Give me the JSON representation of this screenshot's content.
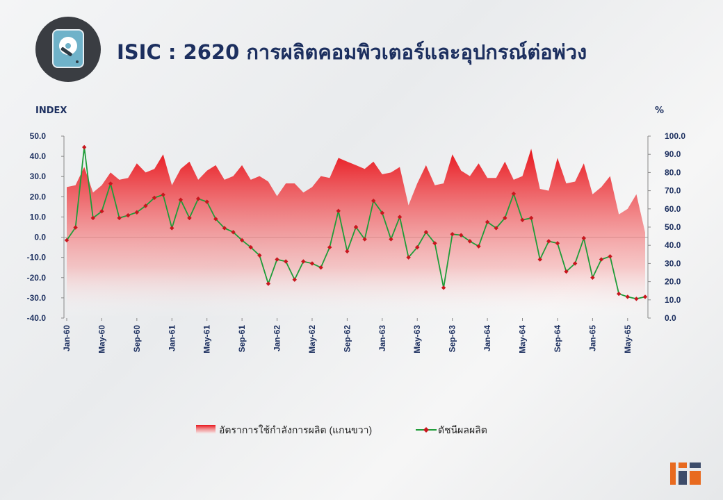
{
  "header": {
    "title": "ISIC : 2620 การผลิตคอมพิวเตอร์และอุปกรณ์ต่อพ่วง",
    "icon": "hard-disk-icon"
  },
  "chart_data": {
    "type": "line",
    "ylabel_left": "INDEX",
    "ylabel_right": "%",
    "ylim_left": [
      -40,
      50
    ],
    "ylim_right": [
      0,
      100
    ],
    "yticks_left": [
      "50.0",
      "40.0",
      "30.0",
      "20.0",
      "10.0",
      "0.0",
      "-10.0",
      "-20.0",
      "-30.0",
      "-40.0"
    ],
    "yticks_right": [
      "100.0",
      "90.0",
      "80.0",
      "70.0",
      "60.0",
      "50.0",
      "40.0",
      "30.0",
      "20.0",
      "10.0",
      "0.0"
    ],
    "grid": false,
    "legend": "bottom",
    "x_tick_labels": [
      {
        "i": 0,
        "label": "Jan-60"
      },
      {
        "i": 4,
        "label": "May-60"
      },
      {
        "i": 8,
        "label": "Sep-60"
      },
      {
        "i": 12,
        "label": "Jan-61"
      },
      {
        "i": 16,
        "label": "May-61"
      },
      {
        "i": 20,
        "label": "Sep-61"
      },
      {
        "i": 24,
        "label": "Jan-62"
      },
      {
        "i": 28,
        "label": "May-62"
      },
      {
        "i": 32,
        "label": "Sep-62"
      },
      {
        "i": 36,
        "label": "Jan-63"
      },
      {
        "i": 40,
        "label": "May-63"
      },
      {
        "i": 44,
        "label": "Sep-63"
      },
      {
        "i": 48,
        "label": "Jan-64"
      },
      {
        "i": 52,
        "label": "May-64"
      },
      {
        "i": 56,
        "label": "Sep-64"
      },
      {
        "i": 60,
        "label": "Jan-65"
      },
      {
        "i": 64,
        "label": "May-65"
      }
    ],
    "series": [
      {
        "name": "อัตราการใช้กำลังการผลิต (แกนขวา)",
        "axis": "right",
        "kind": "area",
        "color": "#e8141b",
        "values": [
          72,
          73,
          83,
          69,
          73,
          80,
          76,
          77,
          85,
          80,
          82,
          90,
          73,
          82,
          86,
          76,
          81,
          84,
          76,
          78,
          84,
          76,
          78,
          75,
          67,
          74,
          74,
          69,
          72,
          78,
          77,
          88,
          86,
          84,
          82,
          86,
          79,
          80,
          83,
          62,
          74,
          84,
          73,
          74,
          90,
          81,
          78,
          85,
          77,
          77,
          86,
          76,
          78,
          93,
          71,
          70,
          88,
          74,
          75,
          85,
          68,
          72,
          78,
          57,
          60,
          68,
          47
        ]
      },
      {
        "name": "ดัชนีผลผลิต",
        "axis": "left",
        "kind": "line",
        "color": "#1e9c38",
        "marker_color": "#c8161e",
        "values": [
          -1.5,
          4.8,
          44.5,
          9.5,
          12.8,
          26.5,
          9.5,
          10.8,
          12.3,
          15.5,
          19.5,
          21,
          4.5,
          18.5,
          9.5,
          19,
          17.5,
          9,
          4.5,
          2.5,
          -1.5,
          -5,
          -9,
          -23,
          -11,
          -12,
          -21,
          -12,
          -13,
          -15,
          -5,
          13,
          -7,
          5,
          -1,
          18,
          12,
          -1,
          10,
          -10,
          -5,
          2.5,
          -3,
          -25,
          1.5,
          1,
          -2,
          -4.5,
          7.5,
          4.5,
          9.5,
          21.5,
          8.5,
          9.5,
          -11,
          -2,
          -3,
          -17,
          -13,
          -0.5,
          -20,
          -11,
          -9.5,
          -28,
          -29.5,
          -30.5,
          -29.5
        ]
      }
    ]
  }
}
